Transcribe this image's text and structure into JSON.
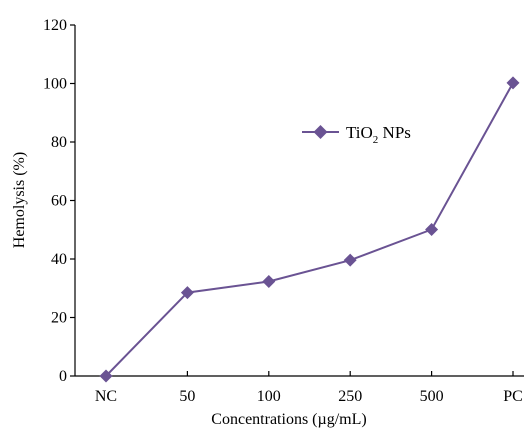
{
  "chart_data": {
    "type": "line",
    "categories": [
      "NC",
      "50",
      "100",
      "250",
      "500",
      "PC"
    ],
    "series": [
      {
        "name": "TiO₂ NPs",
        "name_base": "TiO",
        "name_sub": "2",
        "name_rest": " NPs",
        "values": [
          0,
          28.5,
          32.3,
          39.6,
          50.1,
          100.2
        ]
      }
    ],
    "xlabel": "Concentrations (µg/mL)",
    "ylabel": "Hemolysis (%)",
    "ylim": [
      0,
      120
    ],
    "yticks": [
      0,
      20,
      40,
      60,
      80,
      100,
      120
    ],
    "grid": false,
    "legend_position": "upper-middle-right",
    "colors": {
      "series": "#6a5393",
      "axis": "#000000"
    }
  }
}
